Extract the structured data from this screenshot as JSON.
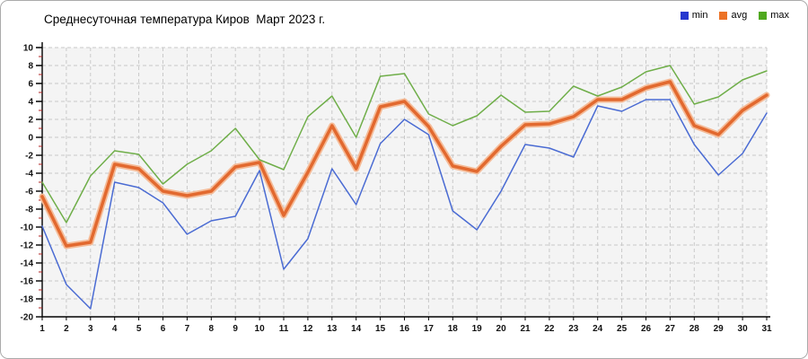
{
  "window": {
    "background": "#ffffff",
    "border_color": "#ababab"
  },
  "chart_data": {
    "type": "line",
    "title": "Среднесуточная температура Киров  Март 2023 г.",
    "xlabel": "",
    "ylabel": "",
    "x": [
      1,
      2,
      3,
      4,
      5,
      6,
      7,
      8,
      9,
      10,
      11,
      12,
      13,
      14,
      15,
      16,
      17,
      18,
      19,
      20,
      21,
      22,
      23,
      24,
      25,
      26,
      27,
      28,
      29,
      30,
      31
    ],
    "ylim": [
      -20,
      10
    ],
    "ytick_step": 2,
    "grid": "dashed",
    "legend_position": "top-right",
    "plot_bg": "#f4f4f4",
    "grid_color": "#c9c9c9",
    "axis_color": "#000000",
    "minor_tick_color": "#b22222",
    "series": [
      {
        "name": "min",
        "color": "#4a6bd3",
        "legend_color": "#2638cf",
        "width": 1.5,
        "values": [
          -9.9,
          -16.4,
          -19.1,
          -5,
          -5.6,
          -7.3,
          -10.8,
          -9.3,
          -8.8,
          -3.7,
          -14.7,
          -11.3,
          -3.5,
          -7.5,
          -0.7,
          2,
          0.3,
          -8.2,
          -10.3,
          -6,
          -0.8,
          -1.2,
          -2.2,
          3.5,
          2.9,
          4.2,
          4.2,
          -0.8,
          -4.2,
          -1.8,
          2.7
        ]
      },
      {
        "name": "avg",
        "color": "#e2692f",
        "halo_color": "#f5bb97",
        "legend_color": "#ec7226",
        "width": 3.5,
        "values": [
          -6.6,
          -12.1,
          -11.7,
          -3,
          -3.5,
          -6,
          -6.5,
          -6,
          -3.3,
          -2.8,
          -8.7,
          -3.9,
          1.3,
          -3.5,
          3.4,
          4,
          1.2,
          -3.2,
          -3.8,
          -1,
          1.4,
          1.5,
          2.3,
          4.2,
          4.2,
          5.5,
          6.2,
          1.3,
          0.3,
          3,
          4.7
        ]
      },
      {
        "name": "max",
        "color": "#6fae49",
        "legend_color": "#4fa81e",
        "width": 1.5,
        "values": [
          -5,
          -9.5,
          -4.3,
          -1.5,
          -1.9,
          -5.2,
          -3,
          -1.5,
          1,
          -2.5,
          -3.6,
          2.3,
          4.6,
          0,
          6.8,
          7.1,
          2.6,
          1.3,
          2.4,
          4.7,
          2.8,
          2.9,
          5.7,
          4.6,
          5.6,
          7.3,
          8,
          3.7,
          4.5,
          6.4,
          7.4
        ]
      }
    ]
  }
}
